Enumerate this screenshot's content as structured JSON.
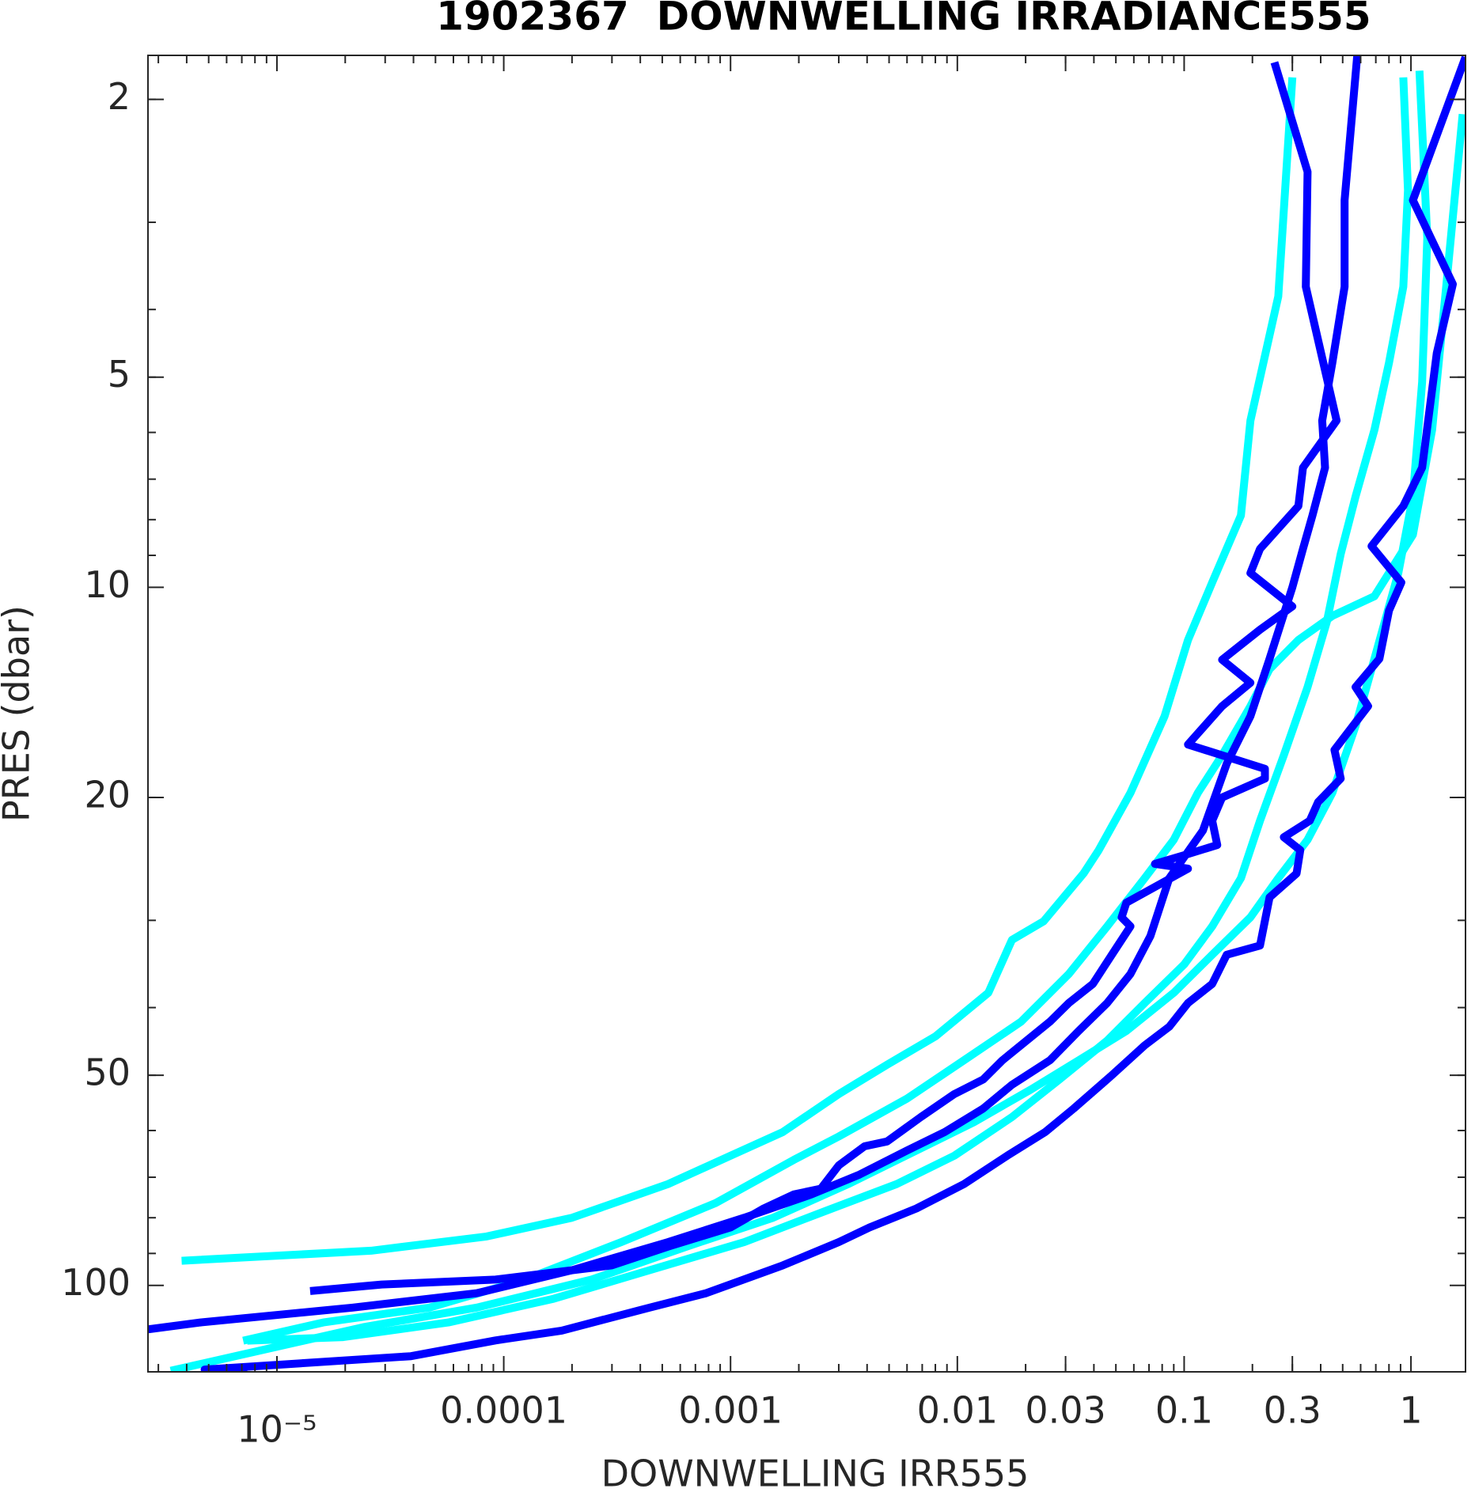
{
  "chart_data": {
    "type": "line",
    "title": "1902367  DOWNWELLING IRRADIANCE555",
    "xlabel": "DOWNWELLING IRR555",
    "ylabel": "PRES (dbar)",
    "xscale": "log",
    "yscale": "log",
    "yreversed": true,
    "xlim": [
      2.7e-06,
      1.74
    ],
    "ylim": [
      1.73,
      133
    ],
    "xticks": [
      {
        "value": 1e-05,
        "label": "10⁻⁵"
      },
      0.0001,
      0.001,
      0.01,
      0.03,
      0.1,
      0.3,
      1
    ],
    "yticks": [
      2,
      5,
      10,
      20,
      50,
      100
    ],
    "grid": false,
    "series": [
      {
        "color": "#00ffff",
        "x": [
          0.3,
          0.26,
          0.196,
          0.178,
          0.133,
          0.104,
          0.082,
          0.058,
          0.042,
          0.036,
          0.024,
          0.0174,
          0.0137,
          0.008,
          0.0049,
          0.003,
          0.0017,
          0.001,
          0.00053,
          0.0002,
          8.4e-05,
          2.6e-05,
          3.8e-06
        ],
        "values": [
          1.86,
          3.83,
          5.77,
          7.89,
          9.84,
          11.9,
          15.3,
          19.7,
          23.8,
          25.7,
          30.1,
          32.0,
          38.1,
          44.0,
          48.3,
          53.2,
          60.3,
          65.2,
          71.6,
          80.0,
          85.1,
          89.2,
          92.2
        ]
      },
      {
        "color": "#00ffff",
        "x": [
          0.925,
          0.97,
          0.925,
          0.8,
          0.69,
          0.57,
          0.49,
          0.426,
          0.35,
          0.275,
          0.216,
          0.178,
          0.133,
          0.1,
          0.067,
          0.0458,
          0.0282,
          0.0174,
          0.0097,
          0.0054,
          0.0025,
          0.00115,
          0.00044,
          0.000166,
          5.7e-05,
          1.96e-05,
          7.4e-06
        ],
        "values": [
          1.86,
          2.7,
          3.71,
          4.77,
          5.95,
          7.41,
          8.96,
          11.2,
          13.9,
          17.4,
          21.6,
          26.1,
          30.6,
          34.7,
          39.4,
          44.6,
          50.7,
          57.4,
          65.2,
          71.6,
          78.7,
          86.7,
          95.1,
          104.5,
          113,
          118.6,
          120
        ]
      },
      {
        "color": "#00ffff",
        "x": [
          1.09,
          1.18,
          1.12,
          1.02,
          0.88,
          0.69,
          0.57,
          0.45,
          0.35,
          0.26,
          0.196,
          0.133,
          0.09,
          0.0556,
          0.0343,
          0.0211,
          0.0118,
          0.0066,
          0.0033,
          0.00154,
          0.00064,
          0.000244,
          7.6e-05,
          2.4e-05,
          3.4e-06
        ],
        "values": [
          1.82,
          3.16,
          5.08,
          7.41,
          9.54,
          12.66,
          15.8,
          19.7,
          23.0,
          26.1,
          29.7,
          33.6,
          38.1,
          43.2,
          47.6,
          52.4,
          58.4,
          64.1,
          71.6,
          80.0,
          88.0,
          98.1,
          107.6,
          114.8,
          132.5
        ]
      },
      {
        "color": "#00ffff",
        "x": [
          1.69,
          1.43,
          1.24,
          1.02,
          0.69,
          0.45,
          0.319,
          0.238,
          0.196,
          0.147,
          0.115,
          0.09,
          0.067,
          0.0458,
          0.031,
          0.0191,
          0.0107,
          0.006,
          0.003,
          0.0019,
          0.00086,
          0.00033,
          0.000124,
          4.7e-05,
          1.6e-05,
          7.1e-06
        ],
        "values": [
          2.1,
          3.71,
          5.95,
          8.41,
          10.3,
          10.99,
          11.9,
          13.1,
          14.8,
          17.4,
          19.7,
          23.0,
          26.1,
          30.6,
          35.8,
          41.9,
          47.6,
          54.0,
          61.2,
          66.1,
          76.2,
          86.7,
          98.1,
          107.6,
          113,
          120
        ]
      },
      {
        "color": "#0000ff",
        "x": [
          0.25,
          0.35,
          0.344,
          0.47,
          0.334,
          0.319,
          0.216,
          0.196,
          0.3,
          0.216,
          0.147,
          0.196,
          0.147,
          0.104,
          0.227,
          0.227,
          0.147,
          0.133,
          0.14,
          0.1,
          0.0744,
          0.104,
          0.0556,
          0.053,
          0.058,
          0.048,
          0.0396,
          0.031,
          0.0256,
          0.0158,
          0.013,
          0.0097,
          0.0069,
          0.0049,
          0.0039,
          0.003,
          0.0025,
          0.0019,
          0.0014,
          0.001,
          0.00053,
          0.0003,
          9.2e-05,
          2.9e-05,
          1.4e-05
        ],
        "values": [
          1.77,
          2.54,
          3.71,
          5.77,
          6.74,
          7.65,
          8.81,
          9.54,
          10.65,
          11.5,
          12.7,
          13.7,
          14.8,
          16.8,
          18.2,
          18.8,
          20.0,
          21.6,
          23.4,
          24.2,
          24.9,
          25.3,
          28.3,
          29.7,
          30.6,
          33.6,
          37.0,
          39.4,
          41.9,
          47.6,
          50.7,
          53.2,
          57.4,
          62.2,
          63.2,
          67.3,
          72.7,
          74.1,
          77.6,
          82.6,
          88.0,
          93.6,
          98.1,
          99.7,
          101.9
        ]
      },
      {
        "color": "#0000ff",
        "x": [
          0.58,
          0.51,
          0.51,
          0.45,
          0.406,
          0.418,
          0.368,
          0.334,
          0.3,
          0.238,
          0.196,
          0.154,
          0.121,
          0.086,
          0.071,
          0.058,
          0.0458,
          0.0343,
          0.0256,
          0.0174,
          0.013,
          0.0088,
          0.006,
          0.0037,
          0.00227,
          0.00115,
          0.00053,
          0.0002,
          7.6e-05,
          2.16e-05,
          4.6e-06,
          2.7e-06
        ],
        "values": [
          1.73,
          2.79,
          3.71,
          4.77,
          5.77,
          6.74,
          7.89,
          8.81,
          10,
          12.66,
          15.3,
          17.9,
          22.3,
          26.1,
          31.6,
          35.8,
          39.4,
          43.2,
          47.6,
          51.6,
          55.8,
          60.3,
          64.1,
          69.4,
          74.1,
          80.0,
          86.7,
          95.1,
          102.6,
          107.6,
          113.0,
          115.6
        ]
      },
      {
        "color": "#0000ff",
        "x": [
          1.74,
          1.02,
          1.53,
          1.3,
          1.12,
          0.925,
          0.67,
          0.907,
          0.8,
          0.726,
          0.57,
          0.647,
          0.46,
          0.49,
          0.39,
          0.358,
          0.275,
          0.325,
          0.313,
          0.238,
          0.216,
          0.154,
          0.133,
          0.104,
          0.086,
          0.067,
          0.048,
          0.0326,
          0.0244,
          0.0166,
          0.0107,
          0.0066,
          0.0041,
          0.003,
          0.0017,
          0.00078,
          0.00044,
          0.00018,
          9.2e-05,
          3.9e-05,
          4.8e-06,
          7.4e-06
        ],
        "values": [
          1.74,
          2.79,
          3.68,
          4.62,
          6.74,
          7.65,
          8.73,
          9.84,
          10.8,
          12.66,
          13.9,
          14.8,
          17.1,
          18.8,
          20.3,
          21.6,
          22.8,
          23.8,
          25.7,
          27.8,
          32.6,
          33.6,
          37.0,
          39.4,
          42.6,
          45.3,
          50,
          55.8,
          60.3,
          65.2,
          71.6,
          77.6,
          82.6,
          86.7,
          93.6,
          102.6,
          107.6,
          116.1,
          119.9,
          126.3,
          132,
          132.5
        ]
      }
    ]
  }
}
